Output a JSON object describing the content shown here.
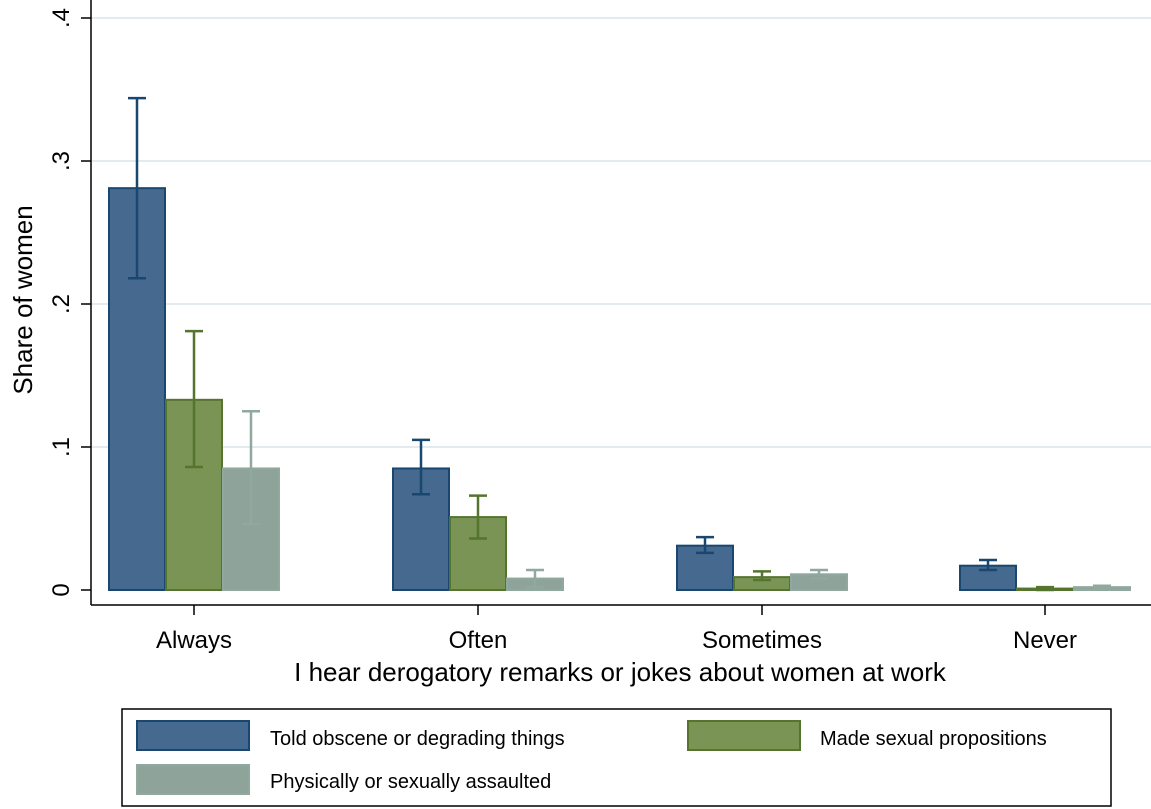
{
  "chart_data": {
    "type": "bar",
    "categories": [
      "Always",
      "Often",
      "Sometimes",
      "Never"
    ],
    "xlabel": "I hear derogatory remarks or jokes about women at work",
    "ylabel": "Share of women",
    "ylim": [
      0,
      0.4
    ],
    "yticks": [
      {
        "value": 0,
        "label": "0"
      },
      {
        "value": 0.1,
        "label": ".1"
      },
      {
        "value": 0.2,
        "label": ".2"
      },
      {
        "value": 0.3,
        "label": ".3"
      },
      {
        "value": 0.4,
        "label": ".4"
      }
    ],
    "grid": true,
    "legend_position": "bottom",
    "series": [
      {
        "name": "Told obscene or degrading things",
        "color": "#466a8f",
        "edge": "#1a476f",
        "values": [
          0.281,
          0.085,
          0.031,
          0.017
        ],
        "ci_low": [
          0.218,
          0.067,
          0.026,
          0.014
        ],
        "ci_high": [
          0.344,
          0.105,
          0.037,
          0.021
        ]
      },
      {
        "name": "Made sexual propositions",
        "color": "#7a9455",
        "edge": "#55752f",
        "values": [
          0.133,
          0.051,
          0.009,
          0.001
        ],
        "ci_low": [
          0.086,
          0.036,
          0.007,
          0.0
        ],
        "ci_high": [
          0.181,
          0.066,
          0.013,
          0.002
        ]
      },
      {
        "name": "Physically or sexually assaulted",
        "color": "#8ea49b",
        "edge": "#90a89e",
        "values": [
          0.085,
          0.008,
          0.011,
          0.002
        ],
        "ci_low": [
          0.046,
          0.002,
          0.008,
          0.001
        ],
        "ci_high": [
          0.125,
          0.014,
          0.014,
          0.003
        ]
      }
    ]
  }
}
